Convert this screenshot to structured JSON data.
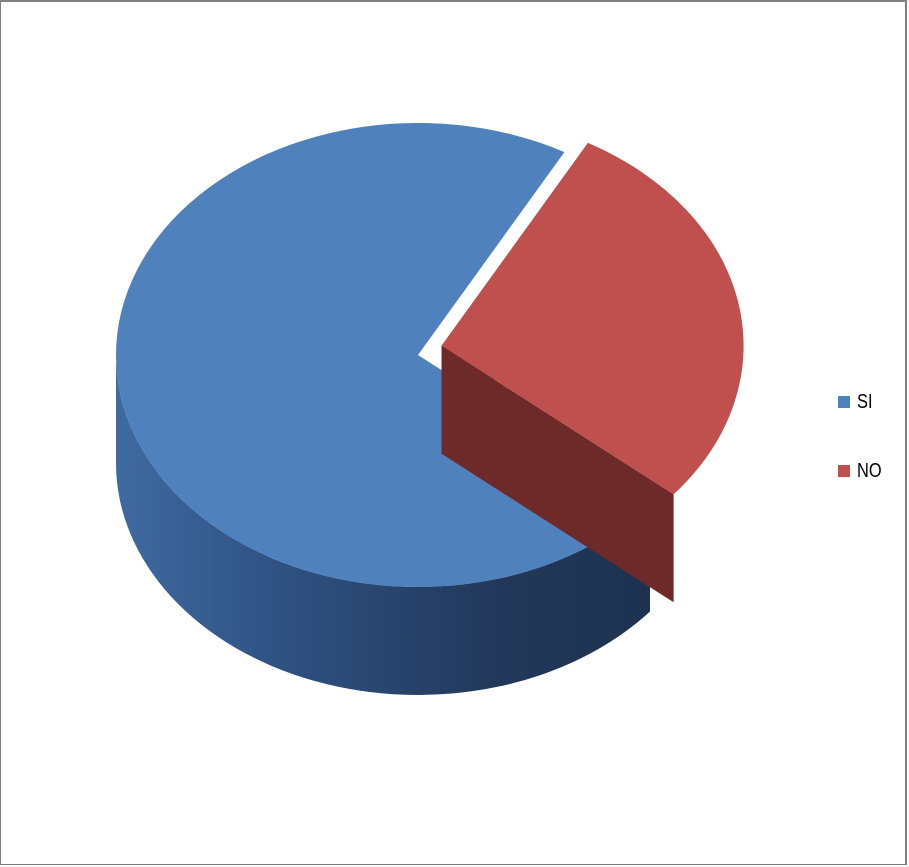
{
  "chart_data": {
    "type": "pie",
    "style": "3d",
    "categories": [
      "SI",
      "NO"
    ],
    "values": [
      72,
      28
    ],
    "exploded": "NO",
    "legend_position": "right",
    "colors": {
      "SI": "#4f81bd",
      "NO": "#c0504d"
    }
  },
  "legend": {
    "items": [
      {
        "label": "SI",
        "color": "#4f81bd"
      },
      {
        "label": "NO",
        "color": "#c0504d"
      }
    ]
  }
}
